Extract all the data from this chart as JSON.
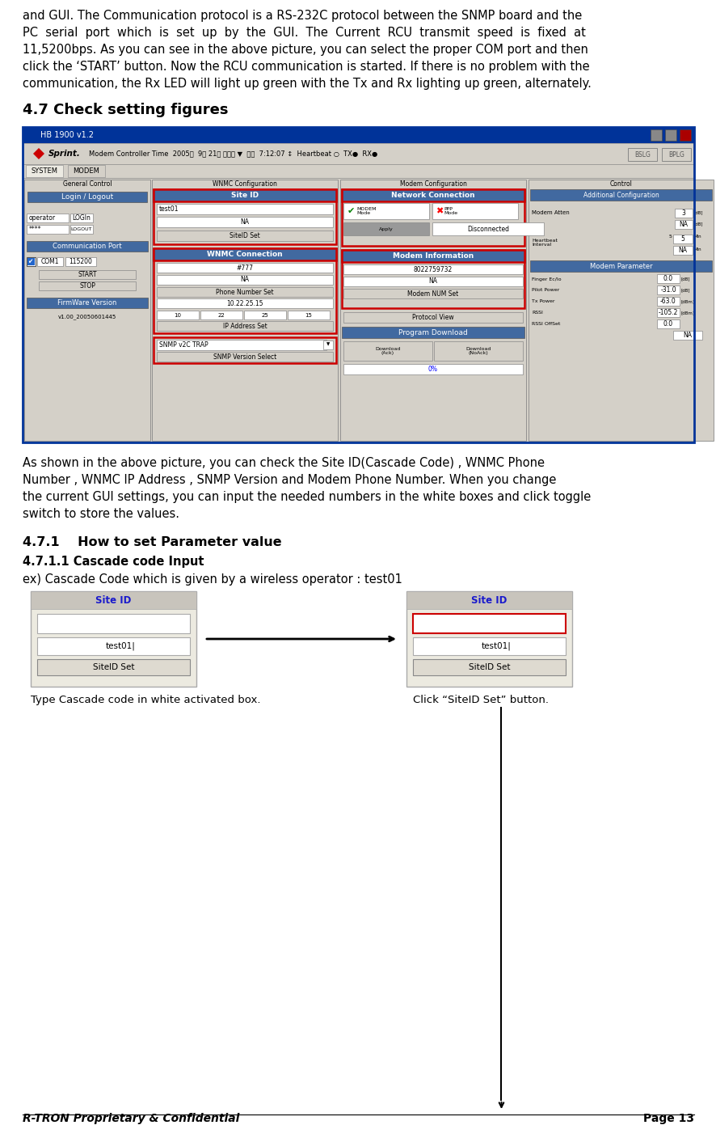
{
  "para1_lines": [
    "and GUI. The Communication protocol is a RS-232C protocol between the SNMP board and the",
    "PC  serial  port  which  is  set  up  by  the  GUI.  The  Current  RCU  transmit  speed  is  fixed  at",
    "11,5200bps. As you can see in the above picture, you can select the proper COM port and then",
    "click the ‘START’ button. Now the RCU communication is started. If there is no problem with the",
    "communication, the Rx LED will light up green with the Tx and Rx lighting up green, alternately."
  ],
  "section_title": "4.7 Check setting figures",
  "para2_lines": [
    "As shown in the above picture, you can check the Site ID(Cascade Code) , WNMC Phone",
    "Number , WNMC IP Address , SNMP Version and Modem Phone Number. When you change",
    "the current GUI settings, you can input the needed numbers in the white boxes and click toggle",
    "switch to store the values."
  ],
  "subsection1_title": "4.7.1    How to set Parameter value",
  "subsection2_title": "4.7.1.1 Cascade code Input",
  "example_text": "ex) Cascade Code which is given by a wireless operator : test01",
  "label_left": "Type Cascade code in white activated box.",
  "label_right": "Click “SiteID Set” button.",
  "footer_left": "R-TRON Proprietary & Confidential",
  "footer_right": "Page 13",
  "bg_color": "#ffffff",
  "text_color": "#000000",
  "red_border": "#cc0000",
  "panel_bg": "#d4d0c8",
  "blue_header": "#4169a0",
  "title_bar_color": "#003399"
}
